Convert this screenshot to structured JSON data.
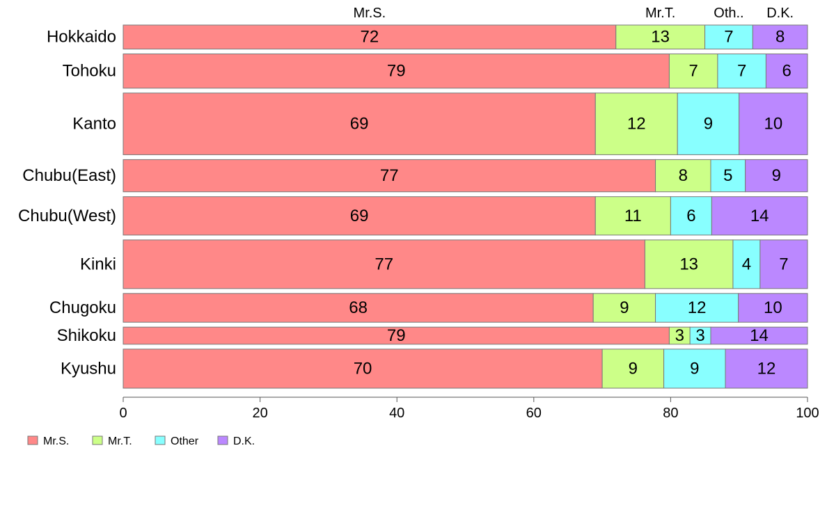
{
  "chart_data": {
    "type": "bar",
    "orientation": "horizontal",
    "stacked": true,
    "variable_width": true,
    "categories": [
      "Hokkaido",
      "Tohoku",
      "Kanto",
      "Chubu(East)",
      "Chubu(West)",
      "Kinki",
      "Chugoku",
      "Shikoku",
      "Kyushu"
    ],
    "series": [
      {
        "name": "Mr.S.",
        "color": "#ff8888",
        "values": [
          72,
          79,
          69,
          77,
          69,
          77,
          68,
          79,
          70
        ]
      },
      {
        "name": "Mr.T.",
        "color": "#ccff88",
        "values": [
          13,
          7,
          12,
          8,
          11,
          13,
          9,
          3,
          9
        ]
      },
      {
        "name": "Other",
        "color": "#88ffff",
        "values": [
          7,
          7,
          9,
          5,
          6,
          4,
          12,
          3,
          9
        ]
      },
      {
        "name": "D.K.",
        "color": "#bb88ff",
        "values": [
          8,
          6,
          10,
          9,
          14,
          7,
          10,
          14,
          12
        ]
      }
    ],
    "segment_labels": [
      [
        "72",
        "13",
        "7",
        "8"
      ],
      [
        "79",
        "7",
        "7",
        "6"
      ],
      [
        "69",
        "12",
        "9",
        "10"
      ],
      [
        "77",
        "8",
        "5",
        "9"
      ],
      [
        "69",
        "11",
        "6",
        "14"
      ],
      [
        "77",
        "13",
        "4",
        "7"
      ],
      [
        "68",
        "9",
        "12",
        "10"
      ],
      [
        "79",
        "3",
        "3",
        "14"
      ],
      [
        "70",
        "9",
        "9",
        "12"
      ]
    ],
    "row_weights": [
      3.5,
      5,
      9,
      4.7,
      5.6,
      7.1,
      4.2,
      2.5,
      5.7
    ],
    "top_labels": [
      "Mr.S.",
      "Mr.T.",
      "Oth..",
      "D.K."
    ],
    "xlim": [
      0,
      100
    ],
    "xticks": [
      "0",
      "20",
      "40",
      "60",
      "80",
      "100"
    ],
    "grid": false,
    "legend": {
      "position": "bottom-left",
      "items": [
        "Mr.S.",
        "Mr.T.",
        "Other",
        "D.K."
      ]
    }
  }
}
